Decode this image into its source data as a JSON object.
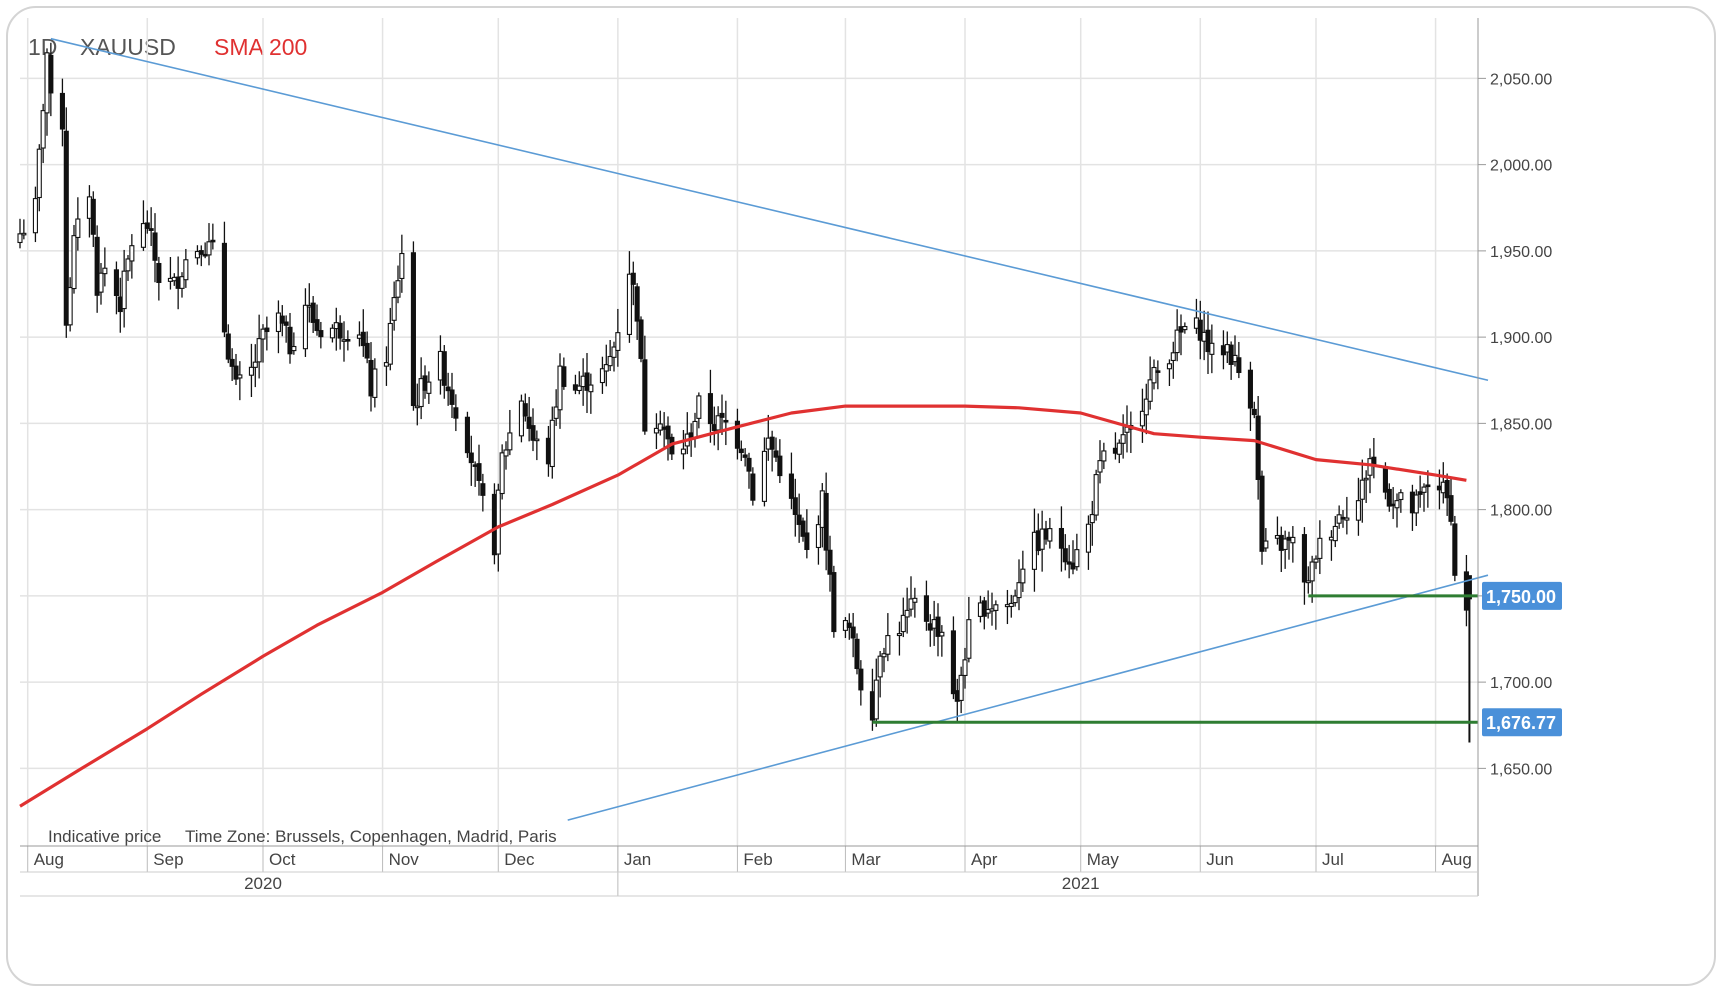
{
  "legend": {
    "period": "1D",
    "symbol": "XAUUSD",
    "indicator": "SMA 200",
    "indicator_color": "#e03131"
  },
  "footer": {
    "indicative": "Indicative price",
    "timezone": "Time Zone: Brussels, Copenhagen, Madrid, Paris"
  },
  "colors": {
    "candle": "#111111",
    "sma": "#e03131",
    "trendline": "#5b9bd5",
    "support": "#2e7d32",
    "grid": "#e3e3e3",
    "price_tag_bg": "#4a90d9"
  },
  "chart_data": {
    "type": "line",
    "title": "",
    "symbol": "XAUUSD",
    "interval": "1D",
    "ylim": [
      1605,
      2085
    ],
    "y_ticks": [
      1650,
      1700,
      1750,
      1800,
      1850,
      1900,
      1950,
      2000,
      2050
    ],
    "y_tick_labels": [
      "1,650.00",
      "1,700.00",
      "1,750.00",
      "1,800.00",
      "1,850.00",
      "1,900.00",
      "1,950.00",
      "2,000.00",
      "2,050.00"
    ],
    "x_range": [
      "2020-07-30",
      "2021-08-12"
    ],
    "month_ticks": [
      {
        "date": "2020-08-01",
        "label": "Aug"
      },
      {
        "date": "2020-09-01",
        "label": "Sep"
      },
      {
        "date": "2020-10-01",
        "label": "Oct"
      },
      {
        "date": "2020-11-01",
        "label": "Nov"
      },
      {
        "date": "2020-12-01",
        "label": "Dec"
      },
      {
        "date": "2021-01-01",
        "label": "Jan"
      },
      {
        "date": "2021-02-01",
        "label": "Feb"
      },
      {
        "date": "2021-03-01",
        "label": "Mar"
      },
      {
        "date": "2021-04-01",
        "label": "Apr"
      },
      {
        "date": "2021-05-01",
        "label": "May"
      },
      {
        "date": "2021-06-01",
        "label": "Jun"
      },
      {
        "date": "2021-07-01",
        "label": "Jul"
      },
      {
        "date": "2021-08-01",
        "label": "Aug"
      }
    ],
    "year_labels": [
      {
        "date": "2020-10-01",
        "label": "2020"
      },
      {
        "date": "2021-05-01",
        "label": "2021"
      }
    ],
    "year_boundary": "2021-01-01",
    "series": [
      {
        "name": "XAUUSD",
        "kind": "close",
        "points": [
          [
            "2020-07-30",
            1960
          ],
          [
            "2020-08-03",
            1975
          ],
          [
            "2020-08-06",
            2065
          ],
          [
            "2020-08-07",
            2035
          ],
          [
            "2020-08-10",
            2025
          ],
          [
            "2020-08-11",
            1910
          ],
          [
            "2020-08-13",
            1955
          ],
          [
            "2020-08-17",
            1985
          ],
          [
            "2020-08-19",
            1930
          ],
          [
            "2020-08-21",
            1940
          ],
          [
            "2020-08-25",
            1920
          ],
          [
            "2020-08-28",
            1955
          ],
          [
            "2020-09-01",
            1965
          ],
          [
            "2020-09-04",
            1935
          ],
          [
            "2020-09-08",
            1930
          ],
          [
            "2020-09-11",
            1945
          ],
          [
            "2020-09-15",
            1955
          ],
          [
            "2020-09-18",
            1950
          ],
          [
            "2020-09-21",
            1905
          ],
          [
            "2020-09-24",
            1870
          ],
          [
            "2020-09-28",
            1880
          ],
          [
            "2020-10-01",
            1900
          ],
          [
            "2020-10-05",
            1910
          ],
          [
            "2020-10-08",
            1895
          ],
          [
            "2020-10-12",
            1920
          ],
          [
            "2020-10-15",
            1905
          ],
          [
            "2020-10-19",
            1905
          ],
          [
            "2020-10-22",
            1905
          ],
          [
            "2020-10-26",
            1905
          ],
          [
            "2020-10-29",
            1870
          ],
          [
            "2020-11-02",
            1890
          ],
          [
            "2020-11-06",
            1950
          ],
          [
            "2020-11-09",
            1860
          ],
          [
            "2020-11-12",
            1875
          ],
          [
            "2020-11-16",
            1885
          ],
          [
            "2020-11-19",
            1865
          ],
          [
            "2020-11-23",
            1840
          ],
          [
            "2020-11-26",
            1810
          ],
          [
            "2020-11-30",
            1780
          ],
          [
            "2020-12-02",
            1830
          ],
          [
            "2020-12-07",
            1865
          ],
          [
            "2020-12-10",
            1840
          ],
          [
            "2020-12-14",
            1830
          ],
          [
            "2020-12-17",
            1880
          ],
          [
            "2020-12-21",
            1870
          ],
          [
            "2020-12-24",
            1875
          ],
          [
            "2020-12-29",
            1880
          ],
          [
            "2020-12-31",
            1895
          ],
          [
            "2021-01-04",
            1940
          ],
          [
            "2021-01-06",
            1915
          ],
          [
            "2021-01-08",
            1850
          ],
          [
            "2021-01-12",
            1855
          ],
          [
            "2021-01-15",
            1830
          ],
          [
            "2021-01-19",
            1840
          ],
          [
            "2021-01-22",
            1860
          ],
          [
            "2021-01-26",
            1850
          ],
          [
            "2021-01-29",
            1850
          ],
          [
            "2021-02-03",
            1835
          ],
          [
            "2021-02-05",
            1810
          ],
          [
            "2021-02-09",
            1840
          ],
          [
            "2021-02-12",
            1825
          ],
          [
            "2021-02-16",
            1795
          ],
          [
            "2021-02-19",
            1775
          ],
          [
            "2021-02-23",
            1805
          ],
          [
            "2021-02-26",
            1735
          ],
          [
            "2021-03-02",
            1730
          ],
          [
            "2021-03-05",
            1700
          ],
          [
            "2021-03-08",
            1685
          ],
          [
            "2021-03-10",
            1720
          ],
          [
            "2021-03-12",
            1725
          ],
          [
            "2021-03-16",
            1735
          ],
          [
            "2021-03-19",
            1745
          ],
          [
            "2021-03-23",
            1735
          ],
          [
            "2021-03-26",
            1730
          ],
          [
            "2021-03-30",
            1685
          ],
          [
            "2021-03-31",
            1705
          ],
          [
            "2021-04-02",
            1730
          ],
          [
            "2021-04-06",
            1745
          ],
          [
            "2021-04-09",
            1745
          ],
          [
            "2021-04-13",
            1745
          ],
          [
            "2021-04-16",
            1770
          ],
          [
            "2021-04-19",
            1780
          ],
          [
            "2021-04-22",
            1785
          ],
          [
            "2021-04-26",
            1780
          ],
          [
            "2021-04-29",
            1770
          ],
          [
            "2021-05-03",
            1790
          ],
          [
            "2021-05-05",
            1815
          ],
          [
            "2021-05-07",
            1830
          ],
          [
            "2021-05-11",
            1835
          ],
          [
            "2021-05-14",
            1845
          ],
          [
            "2021-05-18",
            1870
          ],
          [
            "2021-05-21",
            1880
          ],
          [
            "2021-05-25",
            1895
          ],
          [
            "2021-05-28",
            1905
          ],
          [
            "2021-06-01",
            1905
          ],
          [
            "2021-06-04",
            1890
          ],
          [
            "2021-06-08",
            1895
          ],
          [
            "2021-06-11",
            1880
          ],
          [
            "2021-06-15",
            1860
          ],
          [
            "2021-06-16",
            1815
          ],
          [
            "2021-06-17",
            1775
          ],
          [
            "2021-06-21",
            1780
          ],
          [
            "2021-06-23",
            1780
          ],
          [
            "2021-06-25",
            1780
          ],
          [
            "2021-06-29",
            1755
          ],
          [
            "2021-07-01",
            1775
          ],
          [
            "2021-07-05",
            1790
          ],
          [
            "2021-07-08",
            1800
          ],
          [
            "2021-07-12",
            1805
          ],
          [
            "2021-07-15",
            1830
          ],
          [
            "2021-07-19",
            1810
          ],
          [
            "2021-07-22",
            1805
          ],
          [
            "2021-07-26",
            1800
          ],
          [
            "2021-07-28",
            1805
          ],
          [
            "2021-07-30",
            1815
          ],
          [
            "2021-08-02",
            1815
          ],
          [
            "2021-08-04",
            1805
          ],
          [
            "2021-08-05",
            1800
          ],
          [
            "2021-08-06",
            1760
          ],
          [
            "2021-08-09",
            1745
          ]
        ]
      },
      {
        "name": "SMA 200",
        "kind": "line",
        "points": [
          [
            "2020-07-30",
            1628
          ],
          [
            "2020-08-15",
            1650
          ],
          [
            "2020-09-01",
            1673
          ],
          [
            "2020-09-15",
            1693
          ],
          [
            "2020-10-01",
            1715
          ],
          [
            "2020-10-15",
            1733
          ],
          [
            "2020-11-01",
            1752
          ],
          [
            "2020-11-15",
            1770
          ],
          [
            "2020-12-01",
            1790
          ],
          [
            "2020-12-15",
            1803
          ],
          [
            "2021-01-01",
            1820
          ],
          [
            "2021-01-15",
            1838
          ],
          [
            "2021-02-01",
            1848
          ],
          [
            "2021-02-15",
            1856
          ],
          [
            "2021-03-01",
            1860
          ],
          [
            "2021-04-01",
            1860
          ],
          [
            "2021-04-15",
            1859
          ],
          [
            "2021-05-01",
            1856
          ],
          [
            "2021-05-20",
            1844
          ],
          [
            "2021-06-01",
            1842
          ],
          [
            "2021-06-15",
            1840
          ],
          [
            "2021-07-01",
            1829
          ],
          [
            "2021-07-15",
            1826
          ],
          [
            "2021-08-01",
            1820
          ],
          [
            "2021-08-09",
            1817
          ]
        ]
      }
    ],
    "trendlines": [
      {
        "from": [
          "2020-08-07",
          2073
        ],
        "to": [
          "2021-08-12",
          1875
        ],
        "color": "#5b9bd5"
      },
      {
        "from": [
          "2020-12-19",
          1620
        ],
        "to": [
          "2021-08-12",
          1762
        ],
        "color": "#5b9bd5"
      }
    ],
    "horizontal_levels": [
      {
        "from": "2021-03-08",
        "value": 1676.77,
        "label": "1,676.77",
        "color": "#2e7d32"
      },
      {
        "from": "2021-06-29",
        "value": 1750,
        "label": "1,750.00",
        "color": "#2e7d32"
      }
    ],
    "last_close_spike": {
      "date": "2021-08-09",
      "high": 1750,
      "low": 1665
    },
    "grid": true,
    "legend_position": "top-left"
  }
}
